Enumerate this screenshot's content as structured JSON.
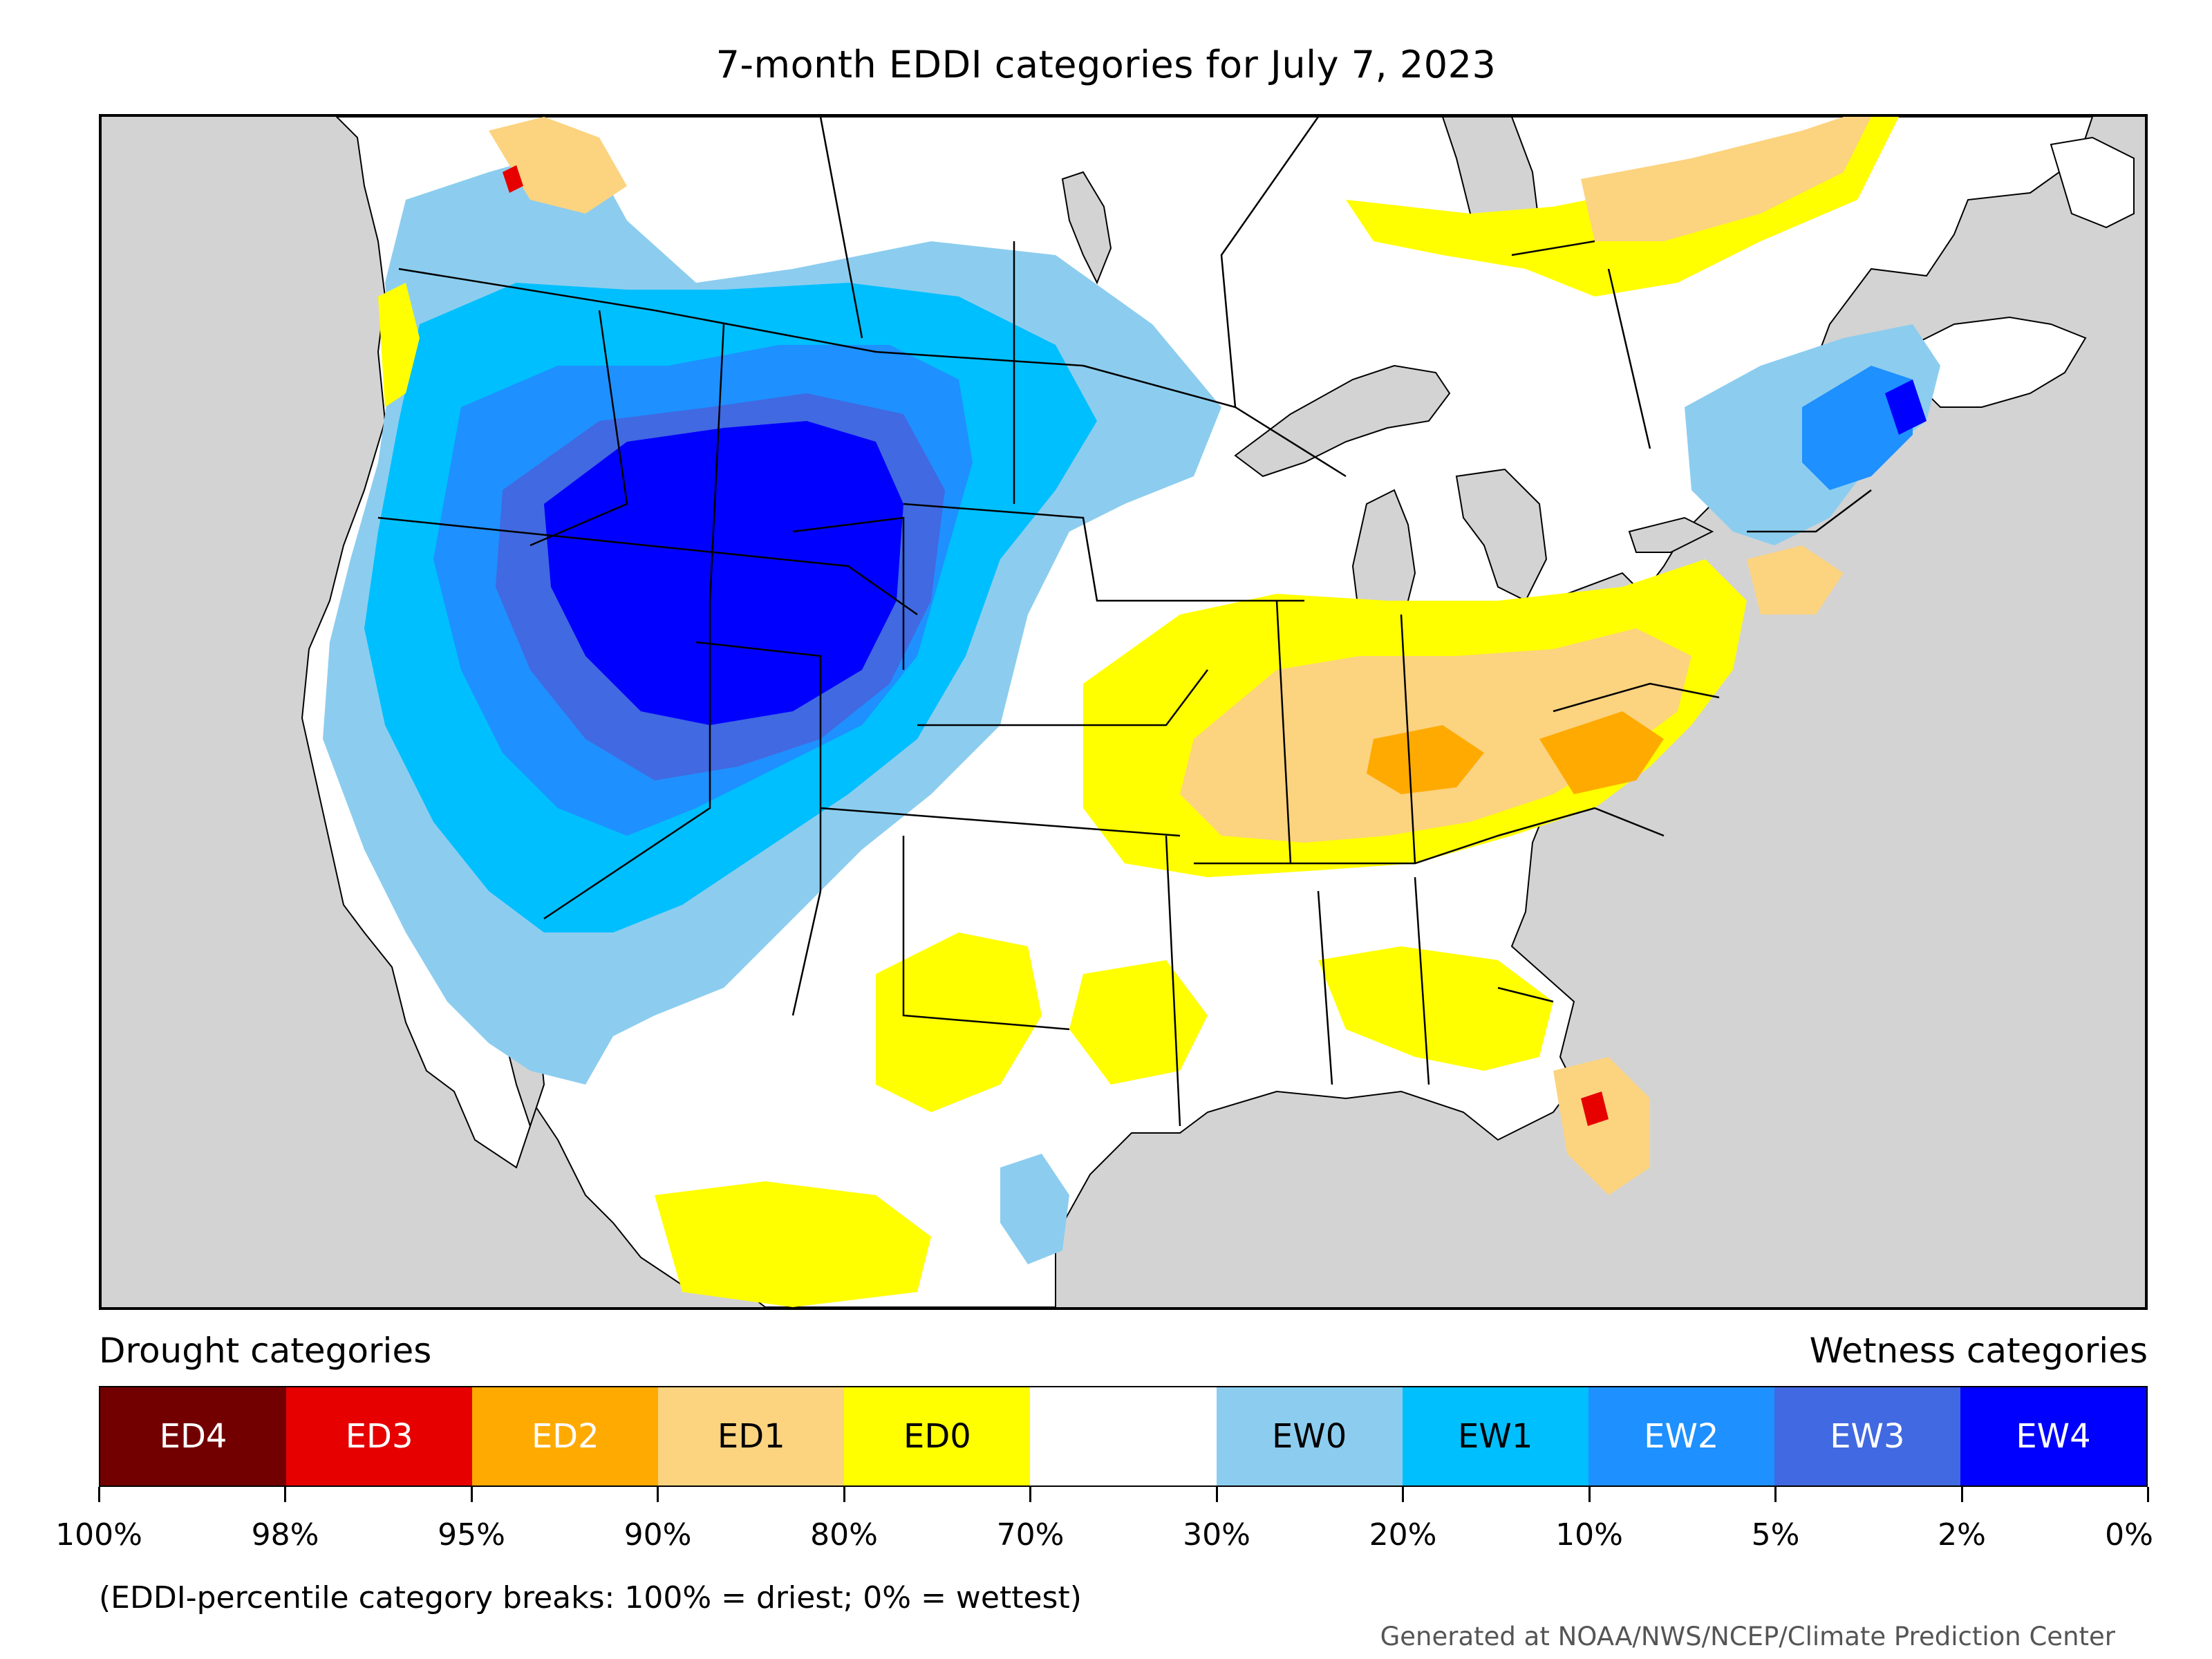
{
  "title": "7-month EDDI categories for July 7, 2023",
  "legend": {
    "left_title": "Drought categories",
    "right_title": "Wetness categories",
    "categories": [
      {
        "label": "ED4",
        "color": "#730000",
        "text_color": "#ffffff"
      },
      {
        "label": "ED3",
        "color": "#e60000",
        "text_color": "#ffffff"
      },
      {
        "label": "ED2",
        "color": "#ffaa00",
        "text_color": "#ffffff"
      },
      {
        "label": "ED1",
        "color": "#fcd37f",
        "text_color": "#000000"
      },
      {
        "label": "ED0",
        "color": "#ffff00",
        "text_color": "#000000"
      },
      {
        "label": "",
        "color": "#ffffff",
        "text_color": "#000000"
      },
      {
        "label": "EW0",
        "color": "#8ccdef",
        "text_color": "#000000"
      },
      {
        "label": "EW1",
        "color": "#00bfff",
        "text_color": "#000000"
      },
      {
        "label": "EW2",
        "color": "#1e90ff",
        "text_color": "#ffffff"
      },
      {
        "label": "EW3",
        "color": "#4169e1",
        "text_color": "#ffffff"
      },
      {
        "label": "EW4",
        "color": "#0000ff",
        "text_color": "#ffffff"
      }
    ],
    "tick_labels": [
      "100%",
      "98%",
      "95%",
      "90%",
      "80%",
      "70%",
      "30%",
      "20%",
      "10%",
      "5%",
      "2%",
      "0%"
    ]
  },
  "note": "(EDDI-percentile category breaks: 100% = driest; 0% = wettest)",
  "credit": "Generated at NOAA/NWS/NCEP/Climate Prediction Center",
  "map": {
    "ocean_color": "#d3d3d3",
    "land_color": "#ffffff",
    "border_color": "#000000"
  }
}
